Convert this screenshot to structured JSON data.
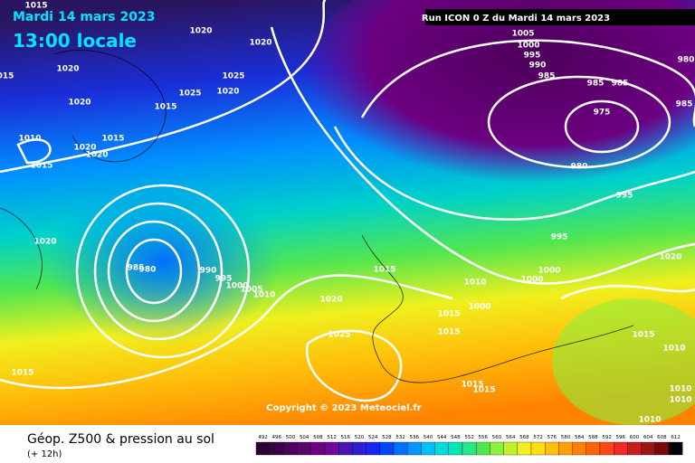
{
  "header": {
    "date": "Mardi 14 mars 2023",
    "time": "13:00 locale",
    "run": "Run ICON 0 Z du Mardi 14 mars 2023"
  },
  "copyright": "Copyright © 2023 Meteociel.fr",
  "footer": {
    "title": "Géop. Z500 & pression au sol",
    "lead": "(+ 12h)"
  },
  "isobar_labels": [
    "1015",
    "1020",
    "1020",
    "015",
    "1020",
    "1020",
    "1025",
    "1025",
    "1020",
    "1015",
    "1010",
    "1020",
    "1020",
    "1015",
    "1015",
    "1020",
    "985",
    "980",
    "990",
    "995",
    "1000",
    "1005",
    "1010",
    "1020",
    "1015",
    "1025",
    "1015",
    "1010",
    "1015",
    "1015",
    "1000",
    "1000",
    "1000",
    "995",
    "995",
    "980",
    "975",
    "985",
    "985",
    "985",
    "990",
    "995",
    "1000",
    "1005",
    "980",
    "985",
    "1020",
    "1015",
    "1010",
    "1010",
    "1010",
    "1010",
    "1015",
    "1015"
  ],
  "scale": {
    "values": [
      492,
      496,
      500,
      504,
      508,
      512,
      516,
      520,
      524,
      528,
      532,
      536,
      540,
      544,
      548,
      552,
      556,
      560,
      564,
      568,
      572,
      576,
      580,
      584,
      588,
      592,
      596,
      600,
      604,
      608,
      612
    ],
    "colors": [
      "#2b0033",
      "#3c0046",
      "#4c005a",
      "#5c006c",
      "#6c0080",
      "#6a0a96",
      "#4a14b4",
      "#2a1ed2",
      "#1428f0",
      "#0046ff",
      "#0070ff",
      "#0096ff",
      "#00bef8",
      "#00dcdc",
      "#00e6b4",
      "#28e68c",
      "#50e650",
      "#8cf03c",
      "#c8f028",
      "#f0f01e",
      "#ffdc14",
      "#ffbe0a",
      "#ffa000",
      "#ff8200",
      "#ff6400",
      "#ff4614",
      "#f02828",
      "#c81e1e",
      "#a01414",
      "#780a0a",
      "#000000"
    ]
  }
}
